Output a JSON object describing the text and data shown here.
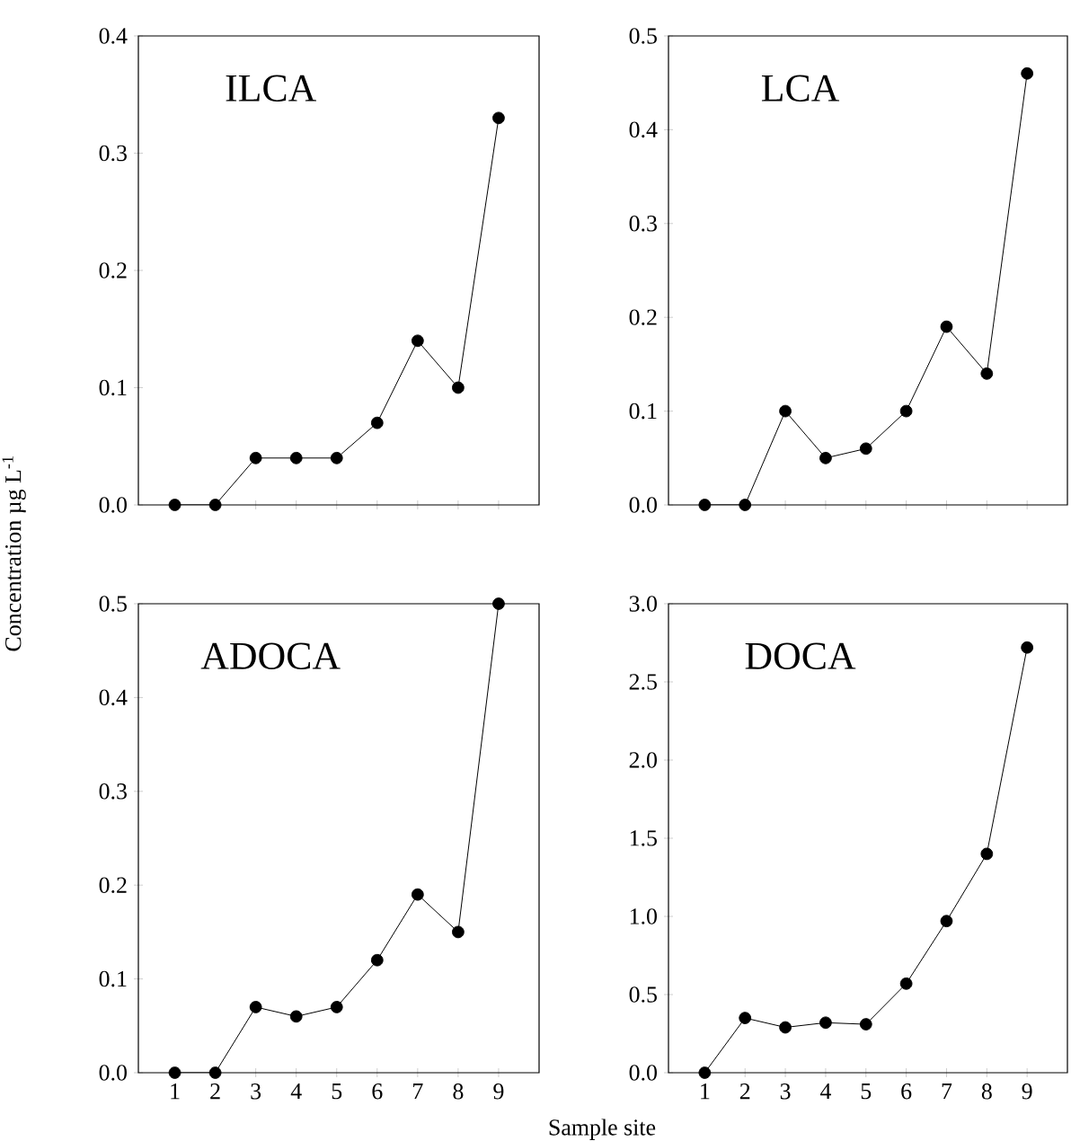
{
  "chart_data": [
    {
      "type": "line",
      "title": "ILCA",
      "ylabel": "Concentration µg L$^{-1}$",
      "x": [
        1,
        2,
        3,
        4,
        5,
        6,
        7,
        8,
        9
      ],
      "values": [
        0,
        0,
        0.04,
        0.04,
        0.04,
        0.07,
        0.14,
        0.1,
        0.33
      ],
      "color": "#000000",
      "marker": "circle",
      "line_style": "solid",
      "xlim": [
        0.1,
        10
      ],
      "ylim": [
        0,
        0.4
      ],
      "xticks": [
        {
          "value": 1,
          "label": null
        },
        {
          "value": 2,
          "label": null
        },
        {
          "value": 3,
          "label": null
        },
        {
          "value": 4,
          "label": null
        },
        {
          "value": 5,
          "label": null
        },
        {
          "value": 6,
          "label": null
        },
        {
          "value": 7,
          "label": null
        },
        {
          "value": 8,
          "label": null
        },
        {
          "value": 9,
          "label": null
        }
      ],
      "yticks": [
        {
          "value": 0,
          "label": "0.0"
        },
        0.1,
        0.2,
        0.3,
        0.4
      ],
      "tick_labels": "y"
    },
    {
      "type": "line",
      "title": "LCA",
      "x": [
        1,
        2,
        3,
        4,
        5,
        6,
        7,
        8,
        9
      ],
      "values": [
        0,
        0,
        0.1,
        0.05,
        0.06,
        0.1,
        0.19,
        0.14,
        0.46
      ],
      "color": "#000000",
      "marker": "circle",
      "line_style": "solid",
      "xlim": [
        0.1,
        10
      ],
      "ylim": [
        0,
        0.5
      ],
      "xticks": [
        {
          "value": 1,
          "label": null
        },
        {
          "value": 2,
          "label": null
        },
        {
          "value": 3,
          "label": null
        },
        {
          "value": 4,
          "label": null
        },
        {
          "value": 5,
          "label": null
        },
        {
          "value": 6,
          "label": null
        },
        {
          "value": 7,
          "label": null
        },
        {
          "value": 8,
          "label": null
        },
        {
          "value": 9,
          "label": null
        }
      ],
      "yticks": [
        {
          "value": 0,
          "label": "0.0"
        },
        0.1,
        0.2,
        0.3,
        0.4,
        0.5
      ],
      "tick_labels": "y"
    },
    {
      "type": "line",
      "title": "ADOCA",
      "xlabel": "Sample site",
      "x": [
        1,
        2,
        3,
        4,
        5,
        6,
        7,
        8,
        9
      ],
      "values": [
        0,
        0,
        0.07,
        0.06,
        0.07,
        0.12,
        0.19,
        0.15,
        0.5
      ],
      "color": "#000000",
      "marker": "circle",
      "line_style": "solid",
      "xlim": [
        0.1,
        10
      ],
      "ylim": [
        0,
        0.5
      ],
      "xticks": [
        1,
        2,
        3,
        4,
        5,
        6,
        7,
        8,
        9
      ],
      "yticks": [
        {
          "value": 0,
          "label": "0.0"
        },
        0.1,
        0.2,
        0.3,
        0.4,
        0.5
      ]
    },
    {
      "type": "line",
      "title": "DOCA",
      "x": [
        1,
        2,
        3,
        4,
        5,
        6,
        7,
        8,
        9
      ],
      "values": [
        0,
        0.35,
        0.29,
        0.32,
        0.31,
        0.57,
        0.97,
        1.4,
        2.72
      ],
      "color": "#000000",
      "marker": "circle",
      "line_style": "solid",
      "xlim": [
        0.1,
        10
      ],
      "ylim": [
        0,
        3.0
      ],
      "xticks": [
        1,
        2,
        3,
        4,
        5,
        6,
        7,
        8,
        9
      ],
      "yticks": [
        {
          "value": 0,
          "label": "0.0"
        },
        0.5,
        {
          "value": 1,
          "label": "1.0"
        },
        1.5,
        {
          "value": 2,
          "label": "2.0"
        },
        2.5,
        {
          "value": 3,
          "label": "3.0"
        }
      ]
    }
  ]
}
